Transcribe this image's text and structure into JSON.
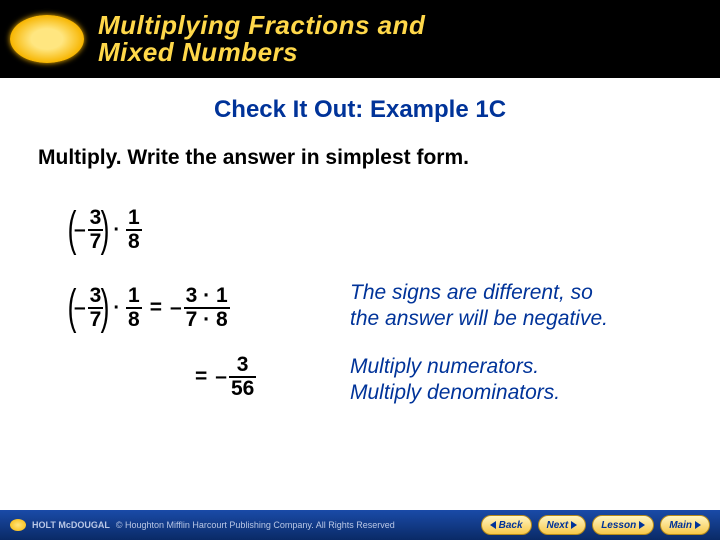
{
  "header": {
    "title_l1": "Multiplying Fractions and",
    "title_l2": "Mixed Numbers"
  },
  "subhead": "Check It Out: Example 1C",
  "instruction": "Multiply. Write the answer in simplest form.",
  "problem": {
    "neg": "–",
    "f1_n": "3",
    "f1_d": "7",
    "dot": "·",
    "f2_n": "1",
    "f2_d": "8"
  },
  "step1": {
    "eq": "=",
    "neg": "–",
    "r_n": "3 · 1",
    "r_d": "7 · 8",
    "expl_a": "The signs are different, so",
    "expl_b": "the answer will be negative."
  },
  "step2": {
    "eq": "=",
    "neg": "–",
    "r_n": "3",
    "r_d": "56",
    "expl_a": "Multiply numerators.",
    "expl_b": "Multiply denominators."
  },
  "footer": {
    "brand": "HOLT McDOUGAL",
    "copy": "© Houghton Mifflin Harcourt Publishing Company. All Rights Reserved",
    "back": "Back",
    "next": "Next",
    "lesson": "Lesson",
    "main": "Main"
  },
  "style": {
    "accent": "#003399",
    "header_bg": "#000000",
    "title_color": "#ffd84a",
    "footer_grad_top": "#1a4ba8",
    "footer_grad_bot": "#0a2a66",
    "btn_grad_top": "#fff5c2",
    "btn_grad_bot": "#f7c84a"
  }
}
